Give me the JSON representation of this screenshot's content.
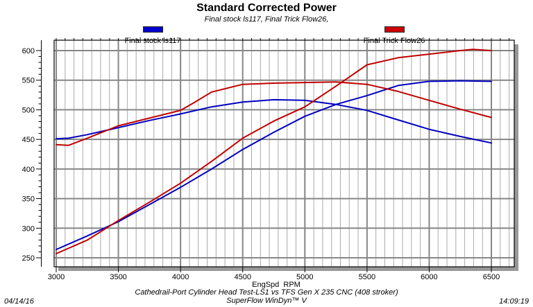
{
  "header": {
    "title": "Standard Corrected Power",
    "subtitle": "Final stock ls117, Final Trick Flow26,"
  },
  "legend": {
    "items": [
      {
        "label": "Final stock ls117",
        "color": "#0000cc"
      },
      {
        "label": "Final Trick Flow26",
        "color": "#cc0000"
      }
    ]
  },
  "footer": {
    "description": "Cathedrail-Port Cylinder Head Test-LS1 vs TFS Gen X 235 CNC (408 stroker)",
    "software": "SuperFlow WinDyn™ V",
    "date": "04/14/16",
    "time": "14:09:19"
  },
  "chart_data": {
    "type": "line",
    "title": "Standard Corrected Power",
    "subtitle": "Final stock ls117, Final Trick Flow26,",
    "xlabel": "EngSpd  RPM",
    "ylabel": "",
    "x_ticks": [
      3000,
      3500,
      4000,
      4500,
      5000,
      5500,
      6000,
      6500
    ],
    "y_ticks": [
      250,
      300,
      350,
      400,
      450,
      500,
      550,
      600
    ],
    "xlim": [
      2983,
      6680
    ],
    "ylim": [
      235,
      612
    ],
    "grid": "on",
    "legend_position": "top",
    "colors": {
      "grid_minor": "#aaaaaa",
      "grid_major": "#868686",
      "frame": "#000000",
      "shadow": "#999999",
      "stock": "#0000c0",
      "trick": "#c00000"
    },
    "series": [
      {
        "name": "Final stock ls117 torque",
        "color": "#0000c0",
        "points": [
          [
            3000,
            451
          ],
          [
            3100,
            452
          ],
          [
            3250,
            458
          ],
          [
            3500,
            470
          ],
          [
            3750,
            482
          ],
          [
            4000,
            493
          ],
          [
            4250,
            505
          ],
          [
            4500,
            513
          ],
          [
            4750,
            517
          ],
          [
            5000,
            516
          ],
          [
            5250,
            509
          ],
          [
            5500,
            499
          ],
          [
            5750,
            483
          ],
          [
            6000,
            467
          ],
          [
            6250,
            455
          ],
          [
            6500,
            444
          ]
        ]
      },
      {
        "name": "Final stock ls117 power",
        "color": "#0000c0",
        "points": [
          [
            3000,
            264
          ],
          [
            3250,
            287
          ],
          [
            3500,
            311
          ],
          [
            3750,
            340
          ],
          [
            4000,
            369
          ],
          [
            4250,
            400
          ],
          [
            4500,
            433
          ],
          [
            4750,
            462
          ],
          [
            5000,
            489
          ],
          [
            5250,
            509
          ],
          [
            5500,
            524
          ],
          [
            5750,
            541
          ],
          [
            6000,
            548
          ],
          [
            6250,
            549
          ],
          [
            6500,
            548
          ]
        ]
      },
      {
        "name": "Final Trick Flow26 torque",
        "color": "#c00000",
        "points": [
          [
            3000,
            441
          ],
          [
            3100,
            440
          ],
          [
            3250,
            452
          ],
          [
            3500,
            473
          ],
          [
            3750,
            486
          ],
          [
            4000,
            499
          ],
          [
            4100,
            511
          ],
          [
            4250,
            530
          ],
          [
            4500,
            543
          ],
          [
            4750,
            545
          ],
          [
            5000,
            546
          ],
          [
            5250,
            547
          ],
          [
            5500,
            543
          ],
          [
            5750,
            531
          ],
          [
            6000,
            516
          ],
          [
            6250,
            501
          ],
          [
            6500,
            487
          ]
        ]
      },
      {
        "name": "Final Trick Flow26 power",
        "color": "#c00000",
        "points": [
          [
            3000,
            257
          ],
          [
            3250,
            280
          ],
          [
            3500,
            313
          ],
          [
            3750,
            344
          ],
          [
            4000,
            376
          ],
          [
            4250,
            413
          ],
          [
            4500,
            452
          ],
          [
            4750,
            481
          ],
          [
            5000,
            505
          ],
          [
            5250,
            540
          ],
          [
            5500,
            576
          ],
          [
            5750,
            588
          ],
          [
            6000,
            594
          ],
          [
            6250,
            600
          ],
          [
            6350,
            602
          ],
          [
            6500,
            600
          ]
        ]
      }
    ]
  }
}
